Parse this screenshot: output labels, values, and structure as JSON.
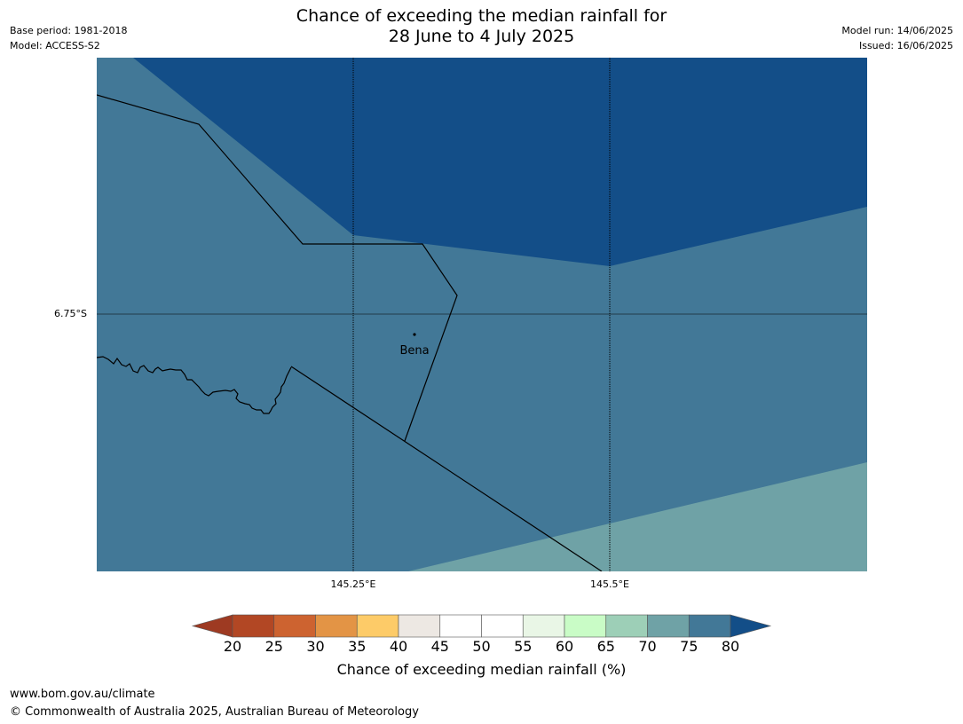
{
  "header": {
    "title_line1": "Chance of exceeding the median rainfall for",
    "title_line2": "28 June to 4 July 2025",
    "base_period": "Base period: 1981-2018",
    "model": "Model: ACCESS-S2",
    "model_run": "Model run: 14/06/2025",
    "issued": "Issued: 16/06/2025"
  },
  "map": {
    "latitude_labels": [
      "6.75°S"
    ],
    "longitude_labels": [
      "145.25°E",
      "145.5°E"
    ],
    "place": {
      "name": "Bena"
    },
    "category_colors": {
      "above_80": "#134e88",
      "75_80": "#427897",
      "70_75": "#6fa2a6"
    }
  },
  "colorbar": {
    "label": "Chance of exceeding median rainfall (%)",
    "ticks": [
      "20",
      "25",
      "30",
      "35",
      "40",
      "45",
      "50",
      "55",
      "60",
      "65",
      "70",
      "75",
      "80"
    ],
    "below_color": "#9e3a22",
    "above_color": "#134e88",
    "colors": [
      "#b24724",
      "#cd6330",
      "#e39445",
      "#fdcb68",
      "#ede8e3",
      "#ffffff",
      "#ffffff",
      "#e9f6e6",
      "#c9fcc6",
      "#9dcfb7",
      "#6fa2a6",
      "#427897"
    ]
  },
  "footer": {
    "url": "www.bom.gov.au/climate",
    "copyright": "© Commonwealth of Australia 2025, Australian Bureau of Meteorology"
  }
}
